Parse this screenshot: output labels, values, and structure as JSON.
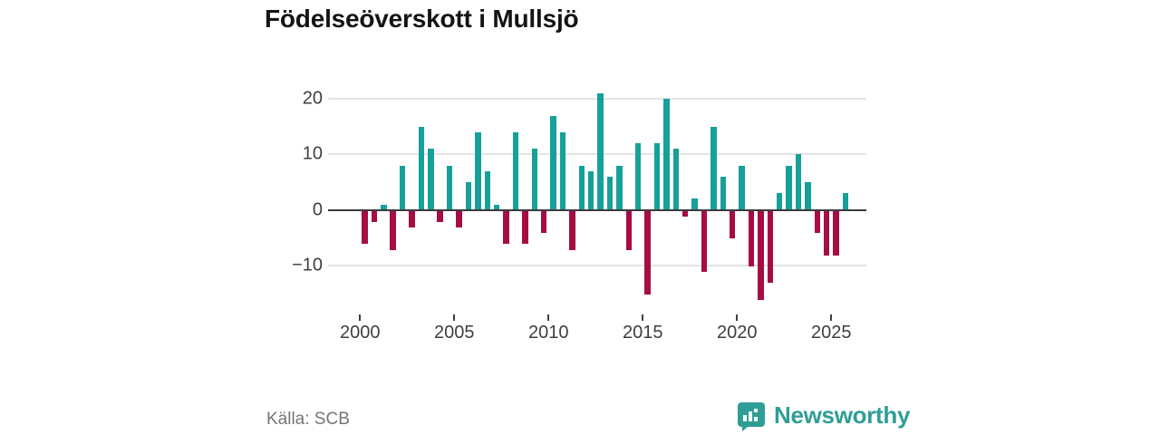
{
  "title": "Födelseöverskott i Mullsjö",
  "footer": {
    "source": "Källa: SCB"
  },
  "logo": {
    "wordmark": "Newsworthy"
  },
  "colors": {
    "positive": "#17a09a",
    "negative": "#a50d44",
    "grid": "#e4e4e4",
    "axis": "#3b3b3b",
    "tick_text": "#3f3f3f",
    "source_text": "#757575",
    "brand": "#2f9e96",
    "title_text": "#141414"
  },
  "chart_data": {
    "type": "bar",
    "title": "Födelseöverskott i Mullsjö",
    "xlabel": "",
    "ylabel": "",
    "grid": true,
    "legend": false,
    "period_type": "half-year",
    "x_axis": {
      "tick_labels": [
        "2000",
        "2005",
        "2010",
        "2015",
        "2020",
        "2025"
      ],
      "tick_years": [
        2000,
        2005,
        2010,
        2015,
        2020,
        2025
      ]
    },
    "y_axis": {
      "tick_values": [
        20,
        10,
        0,
        -10
      ],
      "tick_labels": [
        "20",
        "10",
        "0",
        "−10"
      ],
      "ylim": [
        -17.5,
        23
      ]
    },
    "categories": [
      "2000 H1",
      "2000 H2",
      "2001 H1",
      "2001 H2",
      "2002 H1",
      "2002 H2",
      "2003 H1",
      "2003 H2",
      "2004 H1",
      "2004 H2",
      "2005 H1",
      "2005 H2",
      "2006 H1",
      "2006 H2",
      "2007 H1",
      "2007 H2",
      "2008 H1",
      "2008 H2",
      "2009 H1",
      "2009 H2",
      "2010 H1",
      "2010 H2",
      "2011 H1",
      "2011 H2",
      "2012 H1",
      "2012 H2",
      "2013 H1",
      "2013 H2",
      "2014 H1",
      "2014 H2",
      "2015 H1",
      "2015 H2",
      "2016 H1",
      "2016 H2",
      "2017 H1",
      "2017 H2",
      "2018 H1",
      "2018 H2",
      "2019 H1",
      "2019 H2",
      "2020 H1",
      "2020 H2",
      "2021 H1",
      "2021 H2",
      "2022 H1",
      "2022 H2",
      "2023 H1",
      "2023 H2",
      "2024 H1",
      "2024 H2",
      "2025 H1",
      "2025 H2"
    ],
    "values": [
      -6,
      -2,
      1,
      -7,
      8,
      -3,
      15,
      11,
      -2,
      8,
      -3,
      5,
      14,
      7,
      1,
      -6,
      14,
      -6,
      11,
      -4,
      17,
      14,
      -7,
      8,
      7,
      21,
      6,
      8,
      -7,
      12,
      -15,
      12,
      20,
      11,
      -1,
      2,
      -11,
      15,
      6,
      -5,
      8,
      -10,
      -16,
      -13,
      3,
      8,
      10,
      5,
      -4,
      -8,
      -8,
      3
    ]
  }
}
